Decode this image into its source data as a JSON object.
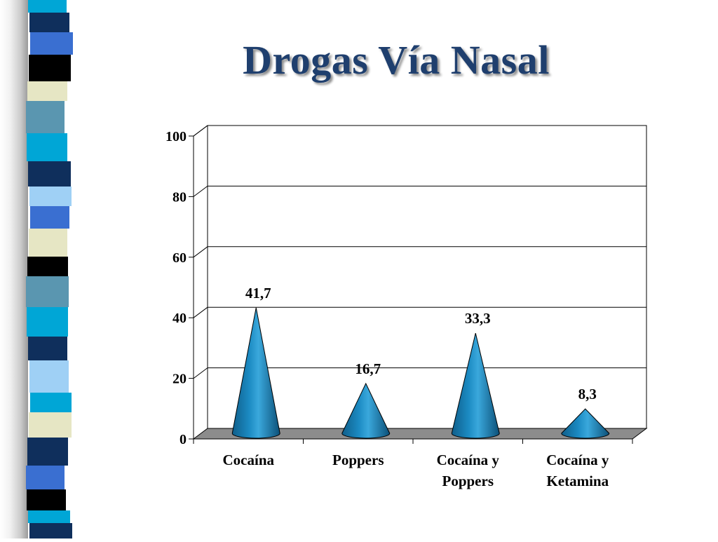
{
  "slide": {
    "title": "Drogas Vía Nasal",
    "theme_colors": [
      "#00a6d6",
      "#1f4a8c",
      "#3a6fd1",
      "#000000",
      "#e6e6c4",
      "#5a96b0",
      "#0f2f5c",
      "#9fd0f5"
    ]
  },
  "chart_data": {
    "type": "bar",
    "mark": "cone",
    "title": "Drogas Vía Nasal",
    "categories": [
      [
        "Cocaína"
      ],
      [
        "Poppers"
      ],
      [
        "Cocaína y",
        "Poppers"
      ],
      [
        "Cocaína y",
        "Ketamina"
      ]
    ],
    "values": [
      41.7,
      16.7,
      33.3,
      8.3
    ],
    "data_labels": [
      "41,7",
      "16,7",
      "33,3",
      "8,3"
    ],
    "yticks": [
      0,
      20,
      40,
      60,
      80,
      100
    ],
    "ylim": [
      0,
      100
    ],
    "grid": true,
    "colors": {
      "cone": "#1b8ac2",
      "floor": "#8c8c8c"
    }
  }
}
